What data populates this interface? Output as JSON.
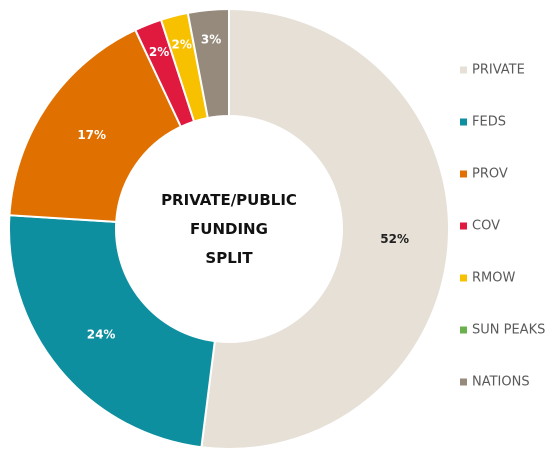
{
  "chart_data": {
    "type": "donut",
    "title": "PRIVATE/PUBLIC FUNDING SPLIT",
    "categories": [
      "PRIVATE",
      "FEDS",
      "PROV",
      "COV",
      "RMOW",
      "SUN PEAKS",
      "NATIONS"
    ],
    "values": [
      52,
      24,
      17,
      2,
      2,
      0,
      3
    ],
    "value_labels": [
      "52%",
      "24%",
      "17%",
      "2%",
      "2%",
      null,
      "3%"
    ],
    "colors": [
      "#e6e0d6",
      "#0e8fa0",
      "#e07000",
      "#e0193f",
      "#f7c100",
      "#6ab04c",
      "#968a7d"
    ],
    "legend": "right"
  }
}
